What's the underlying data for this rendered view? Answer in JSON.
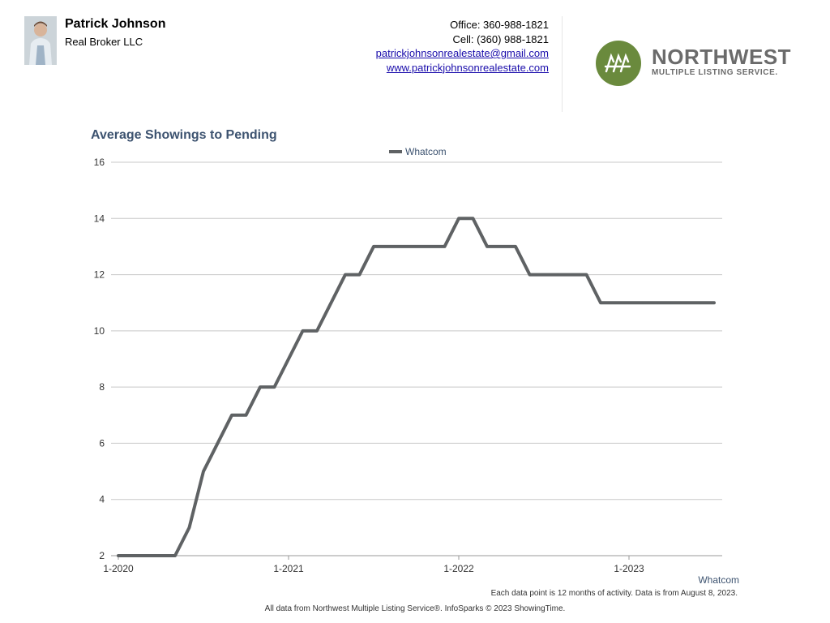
{
  "agent": {
    "name": "Patrick Johnson",
    "company": "Real Broker LLC",
    "office": "Office: 360-988-1821",
    "cell": "Cell: (360) 988-1821",
    "email": "patrickjohnsonrealestate@gmail.com",
    "website": "www.patrickjohnsonrealestate.com"
  },
  "logo": {
    "title": "NORTHWEST",
    "subtitle": "MULTIPLE LISTING SERVICE.",
    "color": "#6a8a3d"
  },
  "chart_data": {
    "type": "line",
    "title": "Average Showings to Pending",
    "xlabel": "",
    "ylabel": "",
    "ylim": [
      2,
      16
    ],
    "yticks": [
      2,
      4,
      6,
      8,
      10,
      12,
      14,
      16
    ],
    "grid": true,
    "legend_position": "top-center",
    "x_tick_labels": [
      "1-2020",
      "1-2021",
      "1-2022",
      "1-2023"
    ],
    "x": [
      "2020-01",
      "2020-02",
      "2020-03",
      "2020-04",
      "2020-05",
      "2020-06",
      "2020-07",
      "2020-08",
      "2020-09",
      "2020-10",
      "2020-11",
      "2020-12",
      "2021-01",
      "2021-02",
      "2021-03",
      "2021-04",
      "2021-05",
      "2021-06",
      "2021-07",
      "2021-08",
      "2021-09",
      "2021-10",
      "2021-11",
      "2021-12",
      "2022-01",
      "2022-02",
      "2022-03",
      "2022-04",
      "2022-05",
      "2022-06",
      "2022-07",
      "2022-08",
      "2022-09",
      "2022-10",
      "2022-11",
      "2022-12",
      "2023-01",
      "2023-02",
      "2023-03",
      "2023-04",
      "2023-05",
      "2023-06",
      "2023-07"
    ],
    "series": [
      {
        "name": "Whatcom",
        "color": "#5f6264",
        "values": [
          2,
          2,
          2,
          2,
          2,
          3,
          5,
          6,
          7,
          7,
          8,
          8,
          9,
          10,
          10,
          11,
          12,
          12,
          13,
          13,
          13,
          13,
          13,
          13,
          14,
          14,
          13,
          13,
          13,
          12,
          12,
          12,
          12,
          12,
          11,
          11,
          11,
          11,
          11,
          11,
          11,
          11,
          11
        ]
      }
    ],
    "series_end_label": "Whatcom"
  },
  "footnote": "Each data point is 12 months of activity. Data is from August 8, 2023.",
  "credit": "All data from Northwest Multiple Listing Service®. InfoSparks © 2023 ShowingTime."
}
